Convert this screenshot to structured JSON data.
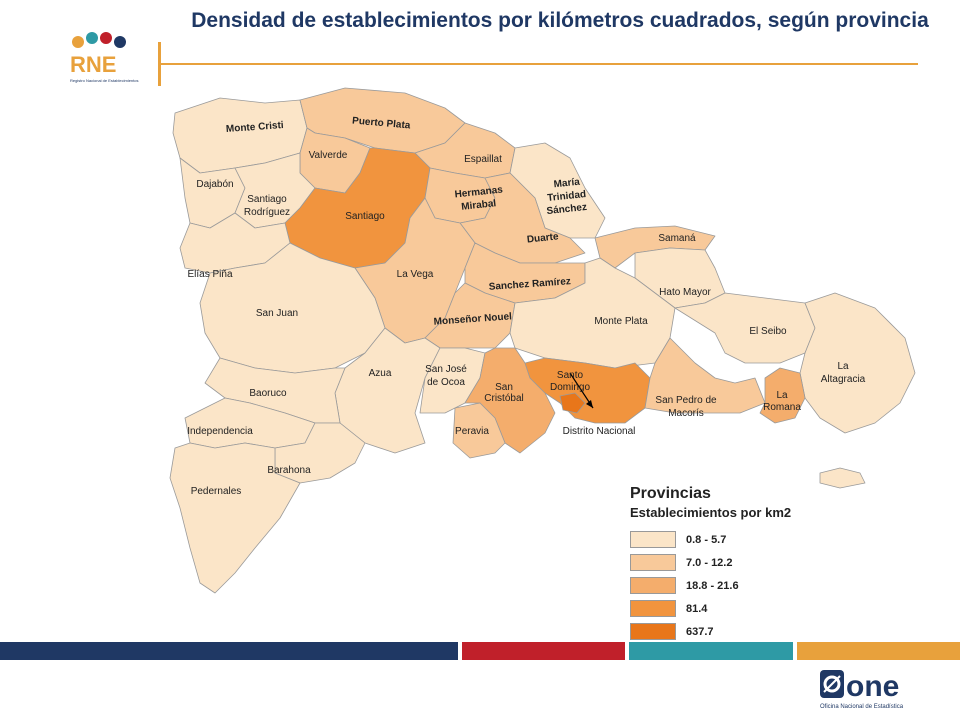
{
  "title": "Densidad de establecimientos por kilómetros cuadrados, según provincia",
  "logo": {
    "rne_text": "RNE",
    "rne_subtitle": "Registro Nacional de Establecimientos",
    "one_text": "one",
    "one_subtitle": "Oficina Nacional de Estadística"
  },
  "colors": {
    "class1": "#fbe5c8",
    "class2": "#f8c99a",
    "class3": "#f4ad6c",
    "class4": "#f1943e",
    "class5": "#e8761a",
    "navy": "#1f3864",
    "red": "#c0202a",
    "teal": "#2e9aa5",
    "orange": "#e8a13c"
  },
  "provinces": [
    {
      "name": "Monte Cristi",
      "class": 1
    },
    {
      "name": "Puerto Plata",
      "class": 2
    },
    {
      "name": "Valverde",
      "class": 2
    },
    {
      "name": "Espaillat",
      "class": 2
    },
    {
      "name": "Dajabón",
      "class": 1
    },
    {
      "name": "Santiago Rodríguez",
      "class": 1
    },
    {
      "name": "Santiago",
      "class": 4
    },
    {
      "name": "Hermanas Mirabal",
      "class": 2
    },
    {
      "name": "María Trinidad Sánchez",
      "class": 1
    },
    {
      "name": "Duarte",
      "class": 2
    },
    {
      "name": "Samaná",
      "class": 2
    },
    {
      "name": "Elías Piña",
      "class": 1
    },
    {
      "name": "La Vega",
      "class": 2
    },
    {
      "name": "Sanchez Ramírez",
      "class": 2
    },
    {
      "name": "Hato Mayor",
      "class": 1
    },
    {
      "name": "San Juan",
      "class": 1
    },
    {
      "name": "Monseñor Nouel",
      "class": 2
    },
    {
      "name": "Monte Plata",
      "class": 1
    },
    {
      "name": "El Seibo",
      "class": 1
    },
    {
      "name": "Azua",
      "class": 1
    },
    {
      "name": "San José de Ocoa",
      "class": 1
    },
    {
      "name": "San Cristóbal",
      "class": 3
    },
    {
      "name": "Santo Domingo",
      "class": 4
    },
    {
      "name": "La Altagracia",
      "class": 1
    },
    {
      "name": "Baoruco",
      "class": 1
    },
    {
      "name": "San Pedro de Macorís",
      "class": 2
    },
    {
      "name": "La Romana",
      "class": 3
    },
    {
      "name": "Independencia",
      "class": 1
    },
    {
      "name": "Peravia",
      "class": 2
    },
    {
      "name": "Distrito Nacional",
      "class": 5
    },
    {
      "name": "Barahona",
      "class": 1
    },
    {
      "name": "Pedernales",
      "class": 1
    }
  ],
  "labels": {
    "monte_cristi": "Monte Cristi",
    "puerto_plata": "Puerto Plata",
    "valverde": "Valverde",
    "espaillat": "Espaillat",
    "dajabon": "Dajabón",
    "santiago_rodriguez_1": "Santiago",
    "santiago_rodriguez_2": "Rodríguez",
    "santiago": "Santiago",
    "hermanas_1": "Hermanas",
    "hermanas_2": "Mirabal",
    "maria_1": "María",
    "maria_2": "Trinidad",
    "maria_3": "Sánchez",
    "duarte": "Duarte",
    "samana": "Samaná",
    "elias_pina": "Elías Piña",
    "la_vega": "La Vega",
    "sanchez_ramirez": "Sanchez Ramírez",
    "hato_mayor": "Hato Mayor",
    "san_juan": "San Juan",
    "monsenor_nouel": "Monseñor Nouel",
    "monte_plata": "Monte Plata",
    "el_seibo": "El Seibo",
    "azua": "Azua",
    "ocoa_1": "San José",
    "ocoa_2": "de Ocoa",
    "san_cristobal_1": "San",
    "san_cristobal_2": "Cristóbal",
    "santo_domingo_1": "Santo",
    "santo_domingo_2": "Domingo",
    "altagracia_1": "La",
    "altagracia_2": "Altagracia",
    "baoruco": "Baoruco",
    "spm_1": "San Pedro de",
    "spm_2": "Macorís",
    "romana_1": "La",
    "romana_2": "Romana",
    "independencia": "Independencia",
    "peravia": "Peravia",
    "distrito_nacional": "Distrito Nacional",
    "barahona": "Barahona",
    "pedernales": "Pedernales"
  },
  "legend": {
    "title": "Provincias",
    "subtitle": "Establecimientos por km2",
    "items": [
      {
        "label": "0.8 - 5.7",
        "color": "#fbe5c8"
      },
      {
        "label": "7.0 - 12.2",
        "color": "#f8c99a"
      },
      {
        "label": "18.8 - 21.6",
        "color": "#f4ad6c"
      },
      {
        "label": "81.4",
        "color": "#f1943e"
      },
      {
        "label": "637.7",
        "color": "#e8761a"
      }
    ]
  }
}
